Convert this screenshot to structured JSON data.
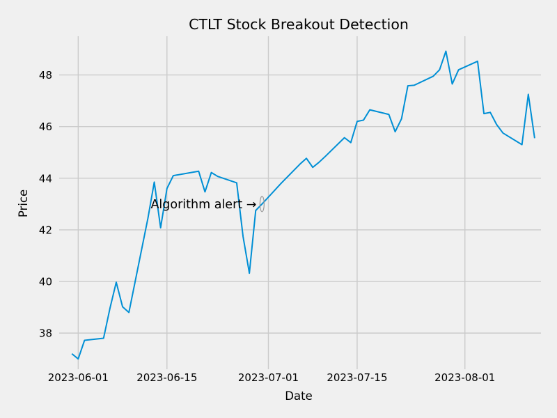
{
  "chart_data": {
    "type": "line",
    "title": "CTLT Stock Breakout Detection",
    "xlabel": "Date",
    "ylabel": "Price",
    "x_ticks": [
      "2023-06-01",
      "2023-06-15",
      "2023-07-01",
      "2023-07-15",
      "2023-08-01"
    ],
    "y_ticks": [
      38,
      40,
      42,
      44,
      46,
      48
    ],
    "xlim": [
      "2023-05-29",
      "2023-08-13"
    ],
    "ylim": [
      36.6,
      49.5
    ],
    "grid": true,
    "annotation": {
      "text": "Algorithm alert →",
      "date": "2023-06-30",
      "price": 43.0
    },
    "series": [
      {
        "color": "#008fd5",
        "points": [
          [
            "2023-05-31",
            37.2
          ],
          [
            "2023-06-01",
            37.0
          ],
          [
            "2023-06-02",
            37.72
          ],
          [
            "2023-06-05",
            37.8
          ],
          [
            "2023-06-06",
            38.95
          ],
          [
            "2023-06-07",
            39.97
          ],
          [
            "2023-06-08",
            39.02
          ],
          [
            "2023-06-09",
            38.8
          ],
          [
            "2023-06-12",
            42.45
          ],
          [
            "2023-06-13",
            43.85
          ],
          [
            "2023-06-14",
            42.08
          ],
          [
            "2023-06-15",
            43.6
          ],
          [
            "2023-06-16",
            44.1
          ],
          [
            "2023-06-20",
            44.27
          ],
          [
            "2023-06-21",
            43.47
          ],
          [
            "2023-06-22",
            44.22
          ],
          [
            "2023-06-23",
            44.07
          ],
          [
            "2023-06-26",
            43.82
          ],
          [
            "2023-06-27",
            41.75
          ],
          [
            "2023-06-28",
            40.32
          ],
          [
            "2023-06-29",
            42.75
          ],
          [
            "2023-06-30",
            43.0
          ],
          [
            "2023-07-03",
            43.8
          ],
          [
            "2023-07-05",
            44.3
          ],
          [
            "2023-07-06",
            44.55
          ],
          [
            "2023-07-07",
            44.77
          ],
          [
            "2023-07-08",
            44.42
          ],
          [
            "2023-07-09",
            44.62
          ],
          [
            "2023-07-10",
            44.85
          ],
          [
            "2023-07-13",
            45.57
          ],
          [
            "2023-07-14",
            45.38
          ],
          [
            "2023-07-15",
            46.2
          ],
          [
            "2023-07-16",
            46.25
          ],
          [
            "2023-07-17",
            46.65
          ],
          [
            "2023-07-20",
            46.47
          ],
          [
            "2023-07-21",
            45.8
          ],
          [
            "2023-07-22",
            46.3
          ],
          [
            "2023-07-23",
            47.58
          ],
          [
            "2023-07-24",
            47.6
          ],
          [
            "2023-07-27",
            47.95
          ],
          [
            "2023-07-28",
            48.2
          ],
          [
            "2023-07-29",
            48.92
          ],
          [
            "2023-07-30",
            47.65
          ],
          [
            "2023-07-31",
            48.2
          ],
          [
            "2023-08-03",
            48.53
          ],
          [
            "2023-08-04",
            46.5
          ],
          [
            "2023-08-05",
            46.55
          ],
          [
            "2023-08-06",
            46.08
          ],
          [
            "2023-08-07",
            45.75
          ],
          [
            "2023-08-10",
            45.3
          ],
          [
            "2023-08-11",
            47.25
          ],
          [
            "2023-08-12",
            45.55
          ]
        ]
      }
    ]
  }
}
